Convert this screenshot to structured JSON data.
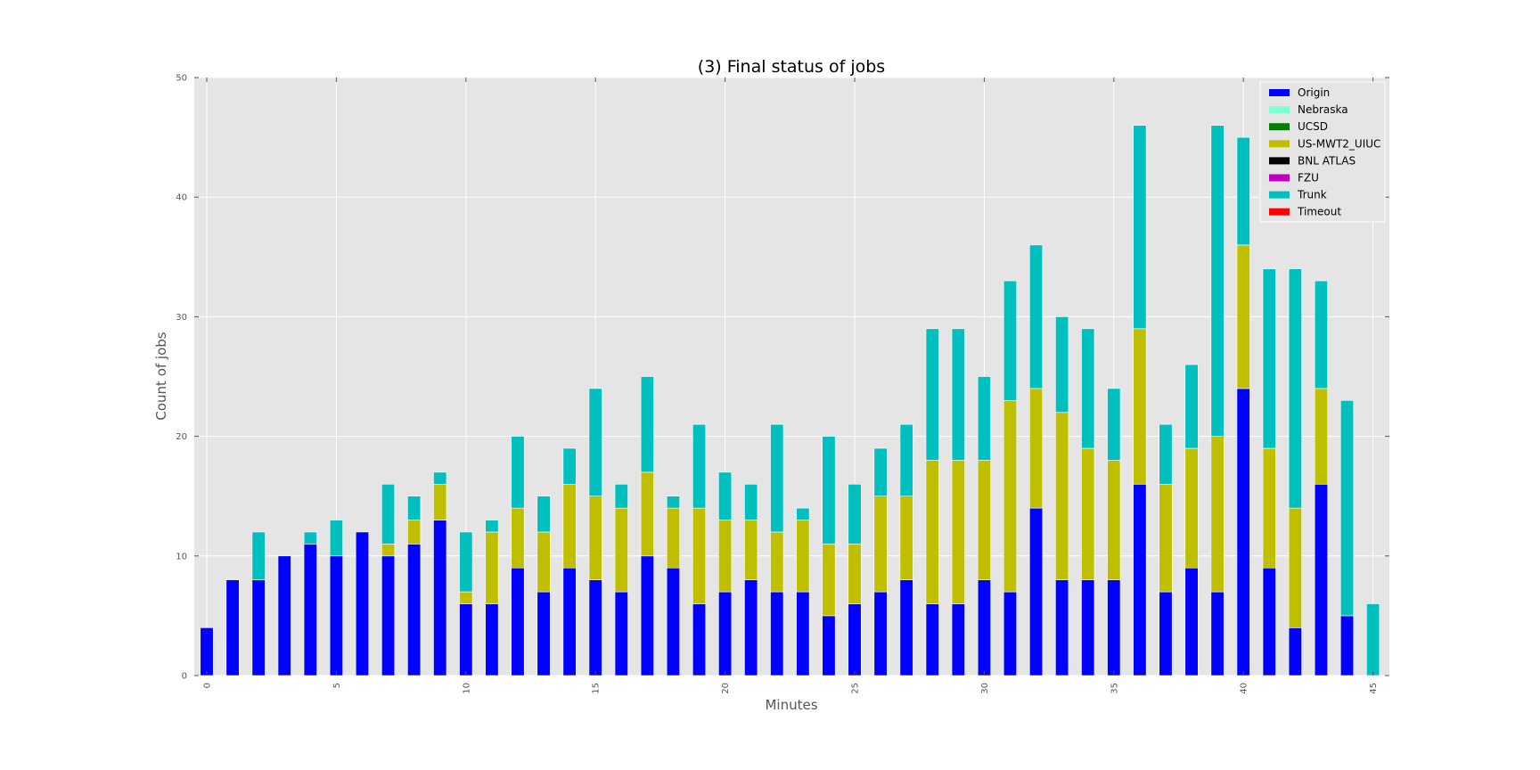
{
  "chart_data": {
    "type": "bar",
    "stacked": true,
    "title": "(3) Final status of jobs",
    "xlabel": "Minutes",
    "ylabel": "Count of jobs",
    "ylim": [
      0,
      50
    ],
    "yticks": [
      0,
      10,
      20,
      30,
      40,
      50
    ],
    "xticks": [
      0,
      5,
      10,
      15,
      20,
      25,
      30,
      35,
      40,
      45
    ],
    "grid": true,
    "legend_placement": "top-right",
    "categories": [
      0,
      1,
      2,
      3,
      4,
      5,
      6,
      7,
      8,
      9,
      10,
      11,
      12,
      13,
      14,
      15,
      16,
      17,
      18,
      19,
      20,
      21,
      22,
      23,
      24,
      25,
      26,
      27,
      28,
      29,
      30,
      31,
      32,
      33,
      34,
      35,
      36,
      37,
      38,
      39,
      40,
      41,
      42,
      43,
      44,
      45
    ],
    "series": [
      {
        "name": "Origin",
        "color": "#0000ff",
        "values": [
          4,
          8,
          8,
          10,
          11,
          10,
          12,
          10,
          11,
          13,
          6,
          6,
          9,
          7,
          9,
          8,
          7,
          10,
          9,
          6,
          7,
          8,
          7,
          7,
          5,
          6,
          7,
          8,
          6,
          6,
          8,
          7,
          14,
          8,
          8,
          8,
          16,
          7,
          9,
          7,
          24,
          9,
          4,
          16,
          5,
          0
        ]
      },
      {
        "name": "Nebraska",
        "color": "#7fffd4",
        "values": [
          0,
          0,
          0,
          0,
          0,
          0,
          0,
          0,
          0,
          0,
          0,
          0,
          0,
          0,
          0,
          0,
          0,
          0,
          0,
          0,
          0,
          0,
          0,
          0,
          0,
          0,
          0,
          0,
          0,
          0,
          0,
          0,
          0,
          0,
          0,
          0,
          0,
          0,
          0,
          0,
          0,
          0,
          0,
          0,
          0,
          0
        ]
      },
      {
        "name": "UCSD",
        "color": "#008000",
        "values": [
          0,
          0,
          0,
          0,
          0,
          0,
          0,
          0,
          0,
          0,
          0,
          0,
          0,
          0,
          0,
          0,
          0,
          0,
          0,
          0,
          0,
          0,
          0,
          0,
          0,
          0,
          0,
          0,
          0,
          0,
          0,
          0,
          0,
          0,
          0,
          0,
          0,
          0,
          0,
          0,
          0,
          0,
          0,
          0,
          0,
          0
        ]
      },
      {
        "name": "US-MWT2_UIUC",
        "color": "#bfbf00",
        "values": [
          0,
          0,
          0,
          0,
          0,
          0,
          0,
          1,
          2,
          3,
          1,
          6,
          5,
          5,
          7,
          7,
          7,
          7,
          5,
          8,
          6,
          5,
          5,
          6,
          6,
          5,
          8,
          7,
          12,
          12,
          10,
          16,
          10,
          14,
          11,
          10,
          13,
          9,
          10,
          13,
          12,
          10,
          10,
          8,
          0,
          0
        ]
      },
      {
        "name": "BNL ATLAS",
        "color": "#000000",
        "values": [
          0,
          0,
          0,
          0,
          0,
          0,
          0,
          0,
          0,
          0,
          0,
          0,
          0,
          0,
          0,
          0,
          0,
          0,
          0,
          0,
          0,
          0,
          0,
          0,
          0,
          0,
          0,
          0,
          0,
          0,
          0,
          0,
          0,
          0,
          0,
          0,
          0,
          0,
          0,
          0,
          0,
          0,
          0,
          0,
          0,
          0
        ]
      },
      {
        "name": "FZU",
        "color": "#bf00bf",
        "values": [
          0,
          0,
          0,
          0,
          0,
          0,
          0,
          0,
          0,
          0,
          0,
          0,
          0,
          0,
          0,
          0,
          0,
          0,
          0,
          0,
          0,
          0,
          0,
          0,
          0,
          0,
          0,
          0,
          0,
          0,
          0,
          0,
          0,
          0,
          0,
          0,
          0,
          0,
          0,
          0,
          0,
          0,
          0,
          0,
          0,
          0
        ]
      },
      {
        "name": "Trunk",
        "color": "#00bfbf",
        "values": [
          0,
          0,
          4,
          0,
          1,
          3,
          0,
          5,
          2,
          1,
          5,
          1,
          6,
          3,
          3,
          9,
          2,
          8,
          1,
          7,
          4,
          3,
          9,
          1,
          9,
          5,
          4,
          6,
          11,
          11,
          7,
          10,
          12,
          8,
          10,
          6,
          17,
          5,
          7,
          26,
          9,
          15,
          20,
          9,
          18,
          6
        ]
      },
      {
        "name": "Timeout",
        "color": "#ff0000",
        "values": [
          0,
          0,
          0,
          0,
          0,
          0,
          0,
          0,
          0,
          0,
          0,
          0,
          0,
          0,
          0,
          0,
          0,
          0,
          0,
          0,
          0,
          0,
          0,
          0,
          0,
          0,
          0,
          0,
          0,
          0,
          0,
          0,
          0,
          0,
          0,
          0,
          0,
          0,
          0,
          0,
          0,
          0,
          0,
          0,
          0,
          0
        ]
      }
    ]
  }
}
